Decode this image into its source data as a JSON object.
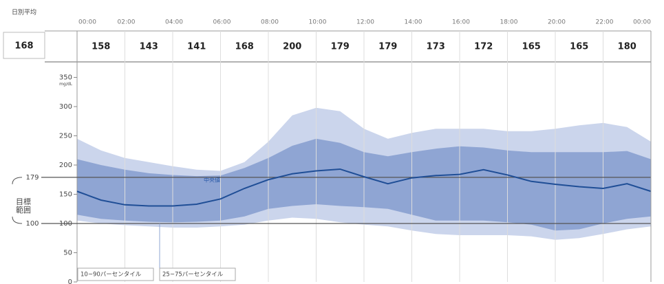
{
  "chart_data": {
    "type": "agp",
    "daily_average_label": "日別平均",
    "daily_average": 168,
    "window_averages": [
      158,
      143,
      141,
      168,
      200,
      179,
      179,
      173,
      172,
      165,
      165,
      180
    ],
    "unit": "mg/dL",
    "x": [
      0,
      1,
      2,
      3,
      4,
      5,
      6,
      7,
      8,
      9,
      10,
      11,
      12,
      13,
      14,
      15,
      16,
      17,
      18,
      19,
      20,
      21,
      22,
      23,
      24
    ],
    "xlim": [
      0,
      24
    ],
    "xticks": [
      {
        "value": 0,
        "label": "00:00"
      },
      {
        "value": 2,
        "label": "02:00"
      },
      {
        "value": 4,
        "label": "04:00"
      },
      {
        "value": 6,
        "label": "06:00"
      },
      {
        "value": 8,
        "label": "08:00"
      },
      {
        "value": 10,
        "label": "10:00"
      },
      {
        "value": 12,
        "label": "12:00"
      },
      {
        "value": 14,
        "label": "14:00"
      },
      {
        "value": 16,
        "label": "16:00"
      },
      {
        "value": 18,
        "label": "18:00"
      },
      {
        "value": 20,
        "label": "20:00"
      },
      {
        "value": 22,
        "label": "22:00"
      },
      {
        "value": 24,
        "label": "00:00"
      }
    ],
    "ylim": [
      0,
      370
    ],
    "yticks": [
      0,
      50,
      100,
      150,
      200,
      250,
      300,
      350
    ],
    "target_label": "目標範囲",
    "target_range": [
      100,
      179
    ],
    "bands": [
      {
        "name": "10~90パーセンタイル",
        "color": "#cbd5ec",
        "lower": [
          105,
          100,
          97,
          95,
          93,
          93,
          95,
          98,
          105,
          110,
          108,
          102,
          98,
          95,
          88,
          82,
          80,
          80,
          80,
          78,
          72,
          75,
          82,
          90,
          95
        ],
        "upper": [
          245,
          225,
          212,
          205,
          198,
          192,
          190,
          205,
          240,
          285,
          298,
          292,
          262,
          245,
          255,
          262,
          262,
          262,
          258,
          258,
          262,
          268,
          272,
          265,
          240
        ]
      },
      {
        "name": "25~75パーセンタイル",
        "color": "#8fa5d3",
        "lower": [
          115,
          108,
          105,
          103,
          102,
          103,
          105,
          112,
          125,
          130,
          133,
          130,
          128,
          125,
          115,
          105,
          105,
          105,
          102,
          98,
          88,
          90,
          100,
          108,
          112
        ],
        "upper": [
          210,
          200,
          192,
          186,
          183,
          181,
          182,
          195,
          212,
          233,
          245,
          238,
          222,
          215,
          222,
          228,
          232,
          230,
          225,
          222,
          222,
          222,
          222,
          224,
          210
        ]
      }
    ],
    "median": {
      "name": "中央値",
      "color": "#1f4e96",
      "values": [
        155,
        140,
        132,
        130,
        130,
        133,
        142,
        160,
        175,
        185,
        190,
        193,
        180,
        168,
        178,
        182,
        184,
        192,
        183,
        172,
        167,
        163,
        160,
        168,
        155
      ]
    }
  }
}
